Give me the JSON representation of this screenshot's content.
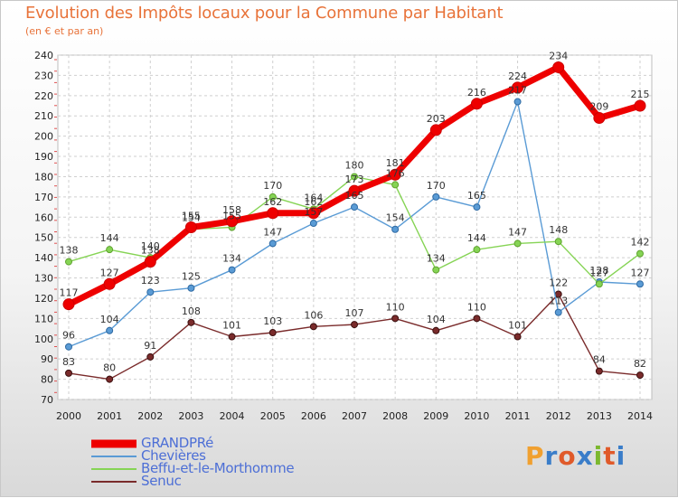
{
  "header": {
    "title": "Evolution des Impôts locaux pour la Commune par Habitant",
    "subtitle": "(en € et par an)"
  },
  "logo": {
    "text": "Proxiti",
    "colors": [
      "#f0a030",
      "#3a7dc9",
      "#e05a2a",
      "#3a7dc9",
      "#7cb82f",
      "#e05a2a",
      "#3a7dc9"
    ]
  },
  "chart_data": {
    "type": "line",
    "title": "Evolution des Impôts locaux pour la Commune par Habitant",
    "subtitle": "(en € et par an)",
    "x": [
      "2000",
      "2001",
      "2002",
      "2003",
      "2004",
      "2005",
      "2006",
      "2007",
      "2008",
      "2009",
      "2010",
      "2011",
      "2012",
      "2013",
      "2014"
    ],
    "ylim": [
      70,
      240
    ],
    "yticks": [
      70,
      80,
      90,
      100,
      110,
      120,
      130,
      140,
      150,
      160,
      170,
      180,
      190,
      200,
      210,
      220,
      230,
      240
    ],
    "grid": true,
    "legend_position": "bottom-left",
    "series": [
      {
        "name": "GRANDPRé",
        "color": "#ee0000",
        "values": [
          117,
          127,
          138,
          155,
          158,
          162,
          162,
          173,
          181,
          203,
          216,
          224,
          234,
          209,
          215
        ]
      },
      {
        "name": "Chevières",
        "color": "#5a9bd5",
        "values": [
          96,
          104,
          123,
          125,
          134,
          147,
          157,
          165,
          154,
          170,
          165,
          217,
          113,
          128,
          127
        ]
      },
      {
        "name": "Beffu-et-le-Morthomme",
        "color": "#86d455",
        "values": [
          138,
          144,
          140,
          154,
          155,
          170,
          164,
          180,
          176,
          134,
          144,
          147,
          148,
          127,
          142
        ]
      },
      {
        "name": "Senuc",
        "color": "#7a2b2b",
        "values": [
          83,
          80,
          91,
          108,
          101,
          103,
          106,
          107,
          110,
          104,
          110,
          101,
          122,
          84,
          82
        ]
      }
    ]
  }
}
